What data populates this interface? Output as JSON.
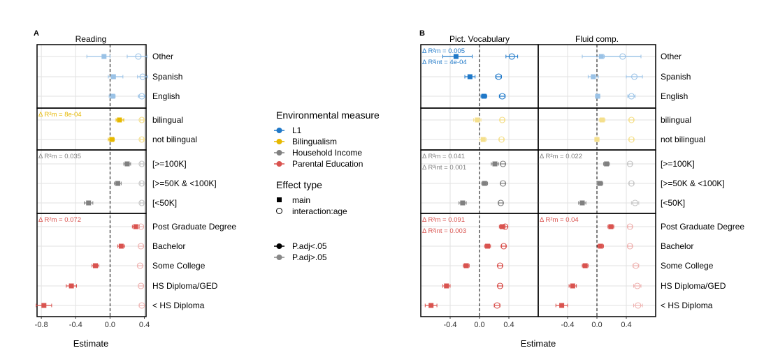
{
  "colors": {
    "L1": "#1f78c8",
    "Bilingualism": "#e6b800",
    "Household Income": "#808080",
    "Parental Education": "#d9534f"
  },
  "panels": [
    {
      "letter": "A",
      "xlabel": "Estimate"
    },
    {
      "letter": "B",
      "xlabel": "Estimate"
    }
  ],
  "category_groups": [
    {
      "measure": "L1",
      "labels": [
        "Other",
        "Spanish",
        "English"
      ]
    },
    {
      "measure": "Bilingualism",
      "labels": [
        "bilingual",
        "not bilingual"
      ]
    },
    {
      "measure": "Household Income",
      "labels": [
        "[>=100K]",
        "[>=50K & <100K]",
        "[<50K]"
      ]
    },
    {
      "measure": "Parental Education",
      "labels": [
        "Post Graduate Degree",
        "Bachelor",
        "Some College",
        "HS Diploma/GED",
        "< HS Diploma"
      ]
    }
  ],
  "legend": {
    "env_title": "Environmental measure",
    "env_items": [
      "L1",
      "Bilingualism",
      "Household Income",
      "Parental Education"
    ],
    "effect_title": "Effect type",
    "effect_items": [
      "main",
      "interaction:age"
    ],
    "sig_items": [
      "P.adj<.05",
      "P.adj>.05"
    ]
  },
  "chart_data": [
    {
      "type": "scatter",
      "title": "Reading",
      "xlim": [
        -0.85,
        0.42
      ],
      "xticks": [
        -0.8,
        -0.4,
        0.0,
        0.4
      ],
      "tick_labels": [
        "-0.8",
        "-0.4",
        "0.0",
        "0.4"
      ],
      "grid": true,
      "annotations": [
        {
          "measure": "Bilingualism",
          "lines": [
            "Δ R²m = 8e-04"
          ]
        },
        {
          "measure": "Household Income",
          "lines": [
            "Δ R²m = 0.035"
          ]
        },
        {
          "measure": "Parental Education",
          "lines": [
            "Δ R²m = 0.072"
          ]
        }
      ],
      "series": [
        {
          "name": "main",
          "measure": "L1",
          "labels": [
            "Other",
            "Spanish",
            "English"
          ],
          "estimates": [
            -0.07,
            0.04,
            0.03
          ],
          "lower": [
            -0.27,
            -0.02,
            -0.01
          ],
          "upper": [
            0.0,
            0.15,
            0.06
          ],
          "significant": [
            false,
            false,
            false
          ]
        },
        {
          "name": "interaction:age",
          "measure": "L1",
          "labels": [
            "Other",
            "Spanish",
            "English"
          ],
          "estimates": [
            0.33,
            0.38,
            0.37
          ],
          "lower": [
            0.2,
            0.32,
            0.33
          ],
          "upper": [
            0.43,
            0.44,
            0.41
          ],
          "significant": [
            false,
            false,
            false
          ]
        },
        {
          "name": "main",
          "measure": "Bilingualism",
          "labels": [
            "bilingual",
            "not bilingual"
          ],
          "estimates": [
            0.11,
            0.02
          ],
          "lower": [
            0.07,
            -0.02
          ],
          "upper": [
            0.16,
            0.05
          ],
          "significant": [
            true,
            true
          ]
        },
        {
          "name": "interaction:age",
          "measure": "Bilingualism",
          "labels": [
            "bilingual",
            "not bilingual"
          ],
          "estimates": [
            0.37,
            0.37
          ],
          "lower": [
            0.35,
            0.35
          ],
          "upper": [
            0.39,
            0.39
          ],
          "significant": [
            false,
            false
          ]
        },
        {
          "name": "main",
          "measure": "Household Income",
          "labels": [
            "[>=100K]",
            "[>=50K & <100K]",
            "[<50K]"
          ],
          "estimates": [
            0.2,
            0.09,
            -0.25
          ],
          "lower": [
            0.16,
            0.05,
            -0.3
          ],
          "upper": [
            0.24,
            0.13,
            -0.2
          ],
          "significant": [
            true,
            true,
            true
          ]
        },
        {
          "name": "interaction:age",
          "measure": "Household Income",
          "labels": [
            "[>=100K]",
            "[>=50K & <100K]",
            "[<50K]"
          ],
          "estimates": [
            0.37,
            0.37,
            0.37
          ],
          "lower": [
            0.35,
            0.35,
            0.35
          ],
          "upper": [
            0.39,
            0.39,
            0.39
          ],
          "significant": [
            false,
            false,
            false
          ]
        },
        {
          "name": "main",
          "measure": "Parental Education",
          "labels": [
            "Post Graduate Degree",
            "Bachelor",
            "Some College",
            "HS Diploma/GED",
            "< HS Diploma"
          ],
          "estimates": [
            0.3,
            0.13,
            -0.17,
            -0.45,
            -0.77
          ],
          "lower": [
            0.26,
            0.09,
            -0.21,
            -0.51,
            -0.86
          ],
          "upper": [
            0.34,
            0.17,
            -0.13,
            -0.39,
            -0.68
          ],
          "significant": [
            true,
            true,
            true,
            true,
            true
          ]
        },
        {
          "name": "interaction:age",
          "measure": "Parental Education",
          "labels": [
            "Post Graduate Degree",
            "Bachelor",
            "Some College",
            "HS Diploma/GED",
            "< HS Diploma"
          ],
          "estimates": [
            0.36,
            0.36,
            0.35,
            0.36,
            0.37
          ],
          "lower": [
            0.33,
            0.33,
            0.32,
            0.33,
            0.34
          ],
          "upper": [
            0.39,
            0.39,
            0.38,
            0.39,
            0.4
          ],
          "significant": [
            false,
            false,
            false,
            false,
            false
          ]
        }
      ]
    },
    {
      "type": "scatter",
      "title": "Pict. Vocabulary",
      "xlim": [
        -0.8,
        0.8
      ],
      "xticks": [
        -0.4,
        0.0,
        0.4
      ],
      "tick_labels": [
        "-0.4",
        "0.0",
        "0.4"
      ],
      "grid": true,
      "annotations": [
        {
          "measure": "L1",
          "lines": [
            "Δ R²m = 0.005",
            "Δ R²int = 4e-04"
          ]
        },
        {
          "measure": "Household Income",
          "lines": [
            "Δ R²m = 0.041",
            "Δ R²int = 0.001"
          ]
        },
        {
          "measure": "Parental Education",
          "lines": [
            "Δ R²m = 0.091",
            "Δ R²int = 0.003"
          ]
        }
      ],
      "series": [
        {
          "name": "main",
          "measure": "L1",
          "labels": [
            "Other",
            "Spanish",
            "English"
          ],
          "estimates": [
            -0.32,
            -0.13,
            0.06
          ],
          "lower": [
            -0.5,
            -0.2,
            0.02
          ],
          "upper": [
            -0.1,
            -0.06,
            0.1
          ],
          "significant": [
            true,
            true,
            true
          ]
        },
        {
          "name": "interaction:age",
          "measure": "L1",
          "labels": [
            "Other",
            "Spanish",
            "English"
          ],
          "estimates": [
            0.44,
            0.26,
            0.31
          ],
          "lower": [
            0.36,
            0.22,
            0.27
          ],
          "upper": [
            0.52,
            0.3,
            0.35
          ],
          "significant": [
            true,
            true,
            true
          ]
        },
        {
          "name": "main",
          "measure": "Bilingualism",
          "labels": [
            "bilingual",
            "not bilingual"
          ],
          "estimates": [
            -0.03,
            0.05
          ],
          "lower": [
            -0.08,
            0.0
          ],
          "upper": [
            0.02,
            0.09
          ],
          "significant": [
            false,
            false
          ]
        },
        {
          "name": "interaction:age",
          "measure": "Bilingualism",
          "labels": [
            "bilingual",
            "not bilingual"
          ],
          "estimates": [
            0.31,
            0.3
          ],
          "lower": [
            0.28,
            0.27
          ],
          "upper": [
            0.34,
            0.33
          ],
          "significant": [
            false,
            false
          ]
        },
        {
          "name": "main",
          "measure": "Household Income",
          "labels": [
            "[>=100K]",
            "[>=50K & <100K]",
            "[<50K]"
          ],
          "estimates": [
            0.21,
            0.07,
            -0.23
          ],
          "lower": [
            0.16,
            0.03,
            -0.28
          ],
          "upper": [
            0.26,
            0.11,
            -0.18
          ],
          "significant": [
            true,
            true,
            true
          ]
        },
        {
          "name": "interaction:age",
          "measure": "Household Income",
          "labels": [
            "[>=100K]",
            "[>=50K & <100K]",
            "[<50K]"
          ],
          "estimates": [
            0.32,
            0.32,
            0.29
          ],
          "lower": [
            0.29,
            0.29,
            0.26
          ],
          "upper": [
            0.35,
            0.35,
            0.32
          ],
          "significant": [
            true,
            true,
            true
          ]
        },
        {
          "name": "main",
          "measure": "Parental Education",
          "labels": [
            "Post Graduate Degree",
            "Bachelor",
            "Some College",
            "HS Diploma/GED",
            "< HS Diploma"
          ],
          "estimates": [
            0.31,
            0.11,
            -0.18,
            -0.45,
            -0.66
          ],
          "lower": [
            0.27,
            0.07,
            -0.22,
            -0.5,
            -0.74
          ],
          "upper": [
            0.35,
            0.15,
            -0.14,
            -0.4,
            -0.58
          ],
          "significant": [
            true,
            true,
            true,
            true,
            true
          ]
        },
        {
          "name": "interaction:age",
          "measure": "Parental Education",
          "labels": [
            "Post Graduate Degree",
            "Bachelor",
            "Some College",
            "HS Diploma/GED",
            "< HS Diploma"
          ],
          "estimates": [
            0.35,
            0.33,
            0.28,
            0.28,
            0.24
          ],
          "lower": [
            0.32,
            0.3,
            0.25,
            0.25,
            0.2
          ],
          "upper": [
            0.38,
            0.36,
            0.31,
            0.31,
            0.28
          ],
          "significant": [
            true,
            true,
            true,
            true,
            true
          ]
        }
      ]
    },
    {
      "type": "scatter",
      "title": "Fluid comp.",
      "xlim": [
        -0.8,
        0.8
      ],
      "xticks": [
        -0.4,
        0.0,
        0.4
      ],
      "tick_labels": [
        "-0.4",
        "0.0",
        "0.4"
      ],
      "grid": true,
      "annotations": [
        {
          "measure": "Household Income",
          "lines": [
            "Δ R²m = 0.022"
          ]
        },
        {
          "measure": "Parental Education",
          "lines": [
            "Δ R²m = 0.04"
          ]
        }
      ],
      "series": [
        {
          "name": "main",
          "measure": "L1",
          "labels": [
            "Other",
            "Spanish",
            "English"
          ],
          "estimates": [
            0.06,
            -0.05,
            0.01
          ],
          "lower": [
            -0.2,
            -0.12,
            -0.02
          ],
          "upper": [
            0.6,
            0.02,
            0.04
          ],
          "significant": [
            false,
            false,
            false
          ]
        },
        {
          "name": "interaction:age",
          "measure": "L1",
          "labels": [
            "Other",
            "Spanish",
            "English"
          ],
          "estimates": [
            0.35,
            0.51,
            0.47
          ],
          "lower": [
            0.1,
            0.4,
            0.42
          ],
          "upper": [
            0.6,
            0.62,
            0.52
          ],
          "significant": [
            false,
            false,
            false
          ]
        },
        {
          "name": "main",
          "measure": "Bilingualism",
          "labels": [
            "bilingual",
            "not bilingual"
          ],
          "estimates": [
            0.07,
            0.0
          ],
          "lower": [
            0.03,
            -0.03
          ],
          "upper": [
            0.11,
            0.03
          ],
          "significant": [
            false,
            false
          ]
        },
        {
          "name": "interaction:age",
          "measure": "Bilingualism",
          "labels": [
            "bilingual",
            "not bilingual"
          ],
          "estimates": [
            0.47,
            0.47
          ],
          "lower": [
            0.44,
            0.44
          ],
          "upper": [
            0.5,
            0.5
          ],
          "significant": [
            false,
            false
          ]
        },
        {
          "name": "main",
          "measure": "Household Income",
          "labels": [
            "[>=100K]",
            "[>=50K & <100K]",
            "[<50K]"
          ],
          "estimates": [
            0.13,
            0.04,
            -0.2
          ],
          "lower": [
            0.09,
            0.0,
            -0.25
          ],
          "upper": [
            0.17,
            0.08,
            -0.15
          ],
          "significant": [
            true,
            true,
            true
          ]
        },
        {
          "name": "interaction:age",
          "measure": "Household Income",
          "labels": [
            "[>=100K]",
            "[>=50K & <100K]",
            "[<50K]"
          ],
          "estimates": [
            0.45,
            0.47,
            0.52
          ],
          "lower": [
            0.42,
            0.44,
            0.47
          ],
          "upper": [
            0.48,
            0.5,
            0.57
          ],
          "significant": [
            false,
            false,
            false
          ]
        },
        {
          "name": "main",
          "measure": "Parental Education",
          "labels": [
            "Post Graduate Degree",
            "Bachelor",
            "Some College",
            "HS Diploma/GED",
            "< HS Diploma"
          ],
          "estimates": [
            0.19,
            0.05,
            -0.16,
            -0.33,
            -0.48
          ],
          "lower": [
            0.15,
            0.01,
            -0.2,
            -0.38,
            -0.56
          ],
          "upper": [
            0.23,
            0.09,
            -0.12,
            -0.28,
            -0.4
          ],
          "significant": [
            true,
            true,
            true,
            true,
            true
          ]
        },
        {
          "name": "interaction:age",
          "measure": "Parental Education",
          "labels": [
            "Post Graduate Degree",
            "Bachelor",
            "Some College",
            "HS Diploma/GED",
            "< HS Diploma"
          ],
          "estimates": [
            0.45,
            0.45,
            0.53,
            0.55,
            0.56
          ],
          "lower": [
            0.42,
            0.42,
            0.49,
            0.5,
            0.5
          ],
          "upper": [
            0.48,
            0.48,
            0.57,
            0.6,
            0.62
          ],
          "significant": [
            false,
            false,
            false,
            false,
            false
          ]
        }
      ]
    }
  ]
}
